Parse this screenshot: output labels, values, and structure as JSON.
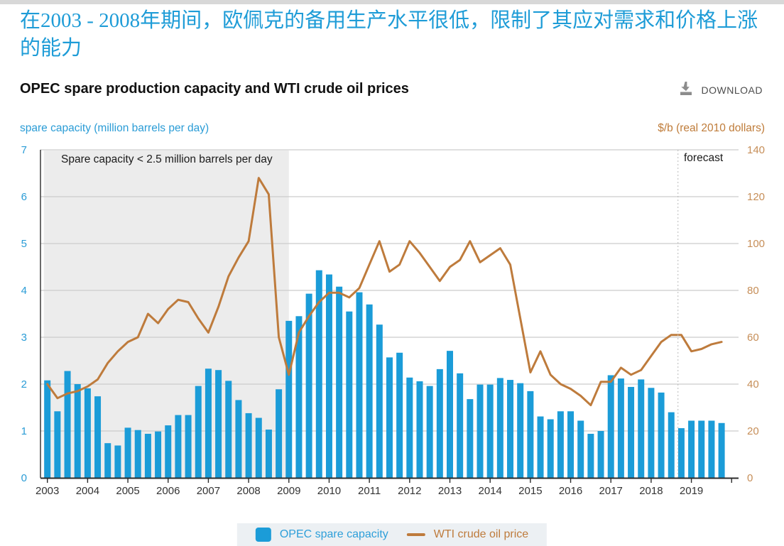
{
  "page": {
    "headline": "在2003 - 2008年期间，欧佩克的备用生产水平很低，限制了其应对需求和价格上涨的能力",
    "chart_title": "OPEC spare production capacity and WTI crude oil prices",
    "download_label": "DOWNLOAD",
    "left_axis_title": "spare capacity (million barrels per day)",
    "right_axis_title": "$/b (real 2010 dollars)",
    "annotation": "Spare capacity < 2.5 million barrels per day",
    "forecast_label": "forecast",
    "colors": {
      "bar_blue": "#1b9cd8",
      "line_orange": "#be7b3c",
      "left_tick_blue": "#2a9cd6",
      "right_tick_orange": "#c68e58",
      "grid_gray": "#cccccc",
      "axis_dark": "#2b2b2b",
      "shade_gray": "#ececec",
      "forecast_line_gray": "#bbbbbb",
      "year_label": "#333333"
    }
  },
  "legend": {
    "bar_label": "OPEC spare capacity",
    "line_label": "WTI crude oil price"
  },
  "chart_data": {
    "type": "bar",
    "subtype": "quarterly bars with overlaid line, dual y-axis",
    "title": "OPEC spare production capacity and WTI crude oil prices",
    "x_years": [
      2003,
      2004,
      2005,
      2006,
      2007,
      2008,
      2009,
      2010,
      2011,
      2012,
      2013,
      2014,
      2015,
      2016,
      2017,
      2018,
      2019
    ],
    "quarters_per_year": 4,
    "left_axis": {
      "label": "spare capacity (million barrels per day)",
      "min": 0,
      "max": 7,
      "step": 1
    },
    "right_axis": {
      "label": "$/b (real 2010 dollars)",
      "min": 0,
      "max": 140,
      "step": 20
    },
    "grid": true,
    "legend_position": "bottom",
    "shaded_region": {
      "label": "Spare capacity < 2.5 million barrels per day",
      "from_year": 2003,
      "to_year": 2009
    },
    "forecast": {
      "label": "forecast",
      "divider_before_quarter": "2018 Q4"
    },
    "series": [
      {
        "name": "OPEC spare capacity",
        "type": "bar",
        "axis": "left",
        "color": "#1b9cd8",
        "values": [
          2.08,
          1.42,
          2.28,
          2.0,
          1.91,
          1.74,
          0.74,
          0.69,
          1.07,
          1.02,
          0.94,
          0.99,
          1.12,
          1.34,
          1.34,
          1.96,
          2.33,
          2.3,
          2.07,
          1.66,
          1.38,
          1.28,
          1.03,
          1.89,
          3.35,
          3.45,
          3.93,
          4.43,
          4.34,
          4.08,
          3.55,
          3.96,
          3.7,
          3.27,
          2.57,
          2.67,
          2.14,
          2.06,
          1.96,
          2.32,
          2.71,
          2.23,
          1.68,
          1.99,
          1.99,
          2.13,
          2.09,
          2.02,
          1.85,
          1.31,
          1.25,
          1.42,
          1.42,
          1.22,
          0.94,
          1.0,
          2.19,
          2.12,
          1.94,
          2.1,
          1.92,
          1.82,
          1.4,
          1.06,
          1.22,
          1.22,
          1.22,
          1.17
        ]
      },
      {
        "name": "WTI crude oil price",
        "type": "line",
        "axis": "right",
        "color": "#be7b3c",
        "values": [
          40,
          34,
          36,
          37,
          39,
          42,
          49,
          54,
          58,
          60,
          70,
          66,
          72,
          76,
          75,
          68,
          62,
          73,
          86,
          94,
          101,
          128,
          121,
          60,
          44,
          62,
          69,
          75,
          79,
          79,
          77,
          81,
          91,
          101,
          88,
          91,
          101,
          96,
          90,
          84,
          90,
          93,
          101,
          92,
          95,
          98,
          91,
          68,
          45,
          54,
          44,
          40,
          38,
          35,
          31,
          41,
          41,
          47,
          44,
          46,
          52,
          58,
          61,
          61,
          54,
          55,
          57,
          58
        ]
      }
    ]
  }
}
